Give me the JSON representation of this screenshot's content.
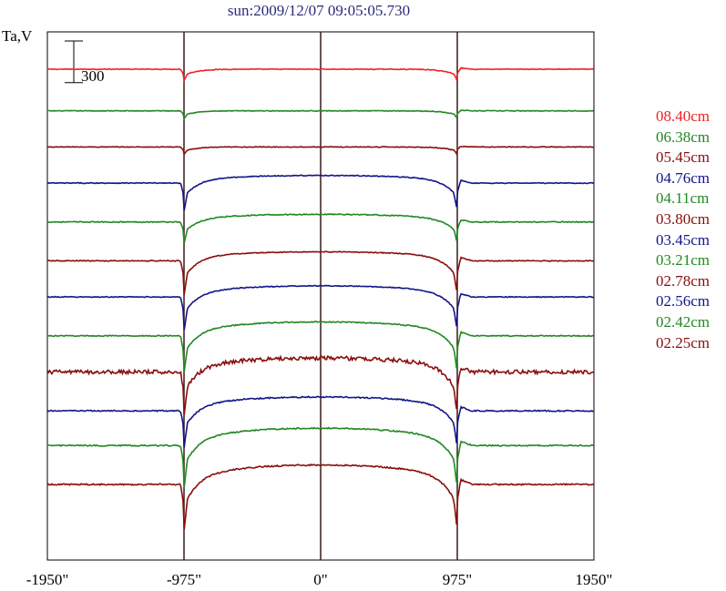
{
  "title": "sun:2009/12/07 09:05:05.730",
  "ylabel": "Ta,V",
  "chart_data": {
    "type": "line",
    "title": "sun:2009/12/07 09:05:05.730",
    "ylabel": "Ta,V",
    "xlim": [
      -1950,
      1950
    ],
    "x_ticks": [
      {
        "value": -1950,
        "label": "-1950\""
      },
      {
        "value": -975,
        "label": "-975\""
      },
      {
        "value": 0,
        "label": "0\""
      },
      {
        "value": 975,
        "label": "975\""
      },
      {
        "value": 1950,
        "label": "1950\""
      }
    ],
    "vertical_lines": [
      -975,
      0,
      975
    ],
    "scale_bar": {
      "label": "300",
      "value": 300
    },
    "legend_position": "right",
    "grid": false,
    "series": [
      {
        "name": "08.40cm",
        "color": "#ee2222",
        "offset": 0,
        "disk": 0,
        "dip": 0.18,
        "noise": 0.12
      },
      {
        "name": "06.38cm",
        "color": "#228822",
        "offset": -300,
        "disk": 0,
        "dip": 0.12,
        "noise": 0.12
      },
      {
        "name": "05.45cm",
        "color": "#880e0e",
        "offset": -560,
        "disk": 0,
        "dip": 0.12,
        "noise": 0.12
      },
      {
        "name": "04.76cm",
        "color": "#141488",
        "offset": -820,
        "disk": 55,
        "dip": 0.45,
        "noise": 0.15
      },
      {
        "name": "04.11cm",
        "color": "#228822",
        "offset": -1100,
        "disk": 55,
        "dip": 0.35,
        "noise": 0.18
      },
      {
        "name": "03.80cm",
        "color": "#880e0e",
        "offset": -1380,
        "disk": 65,
        "dip": 0.55,
        "noise": 0.15
      },
      {
        "name": "03.45cm",
        "color": "#141488",
        "offset": -1640,
        "disk": 80,
        "dip": 0.55,
        "noise": 0.15
      },
      {
        "name": "03.21cm",
        "color": "#228822",
        "offset": -1920,
        "disk": 100,
        "dip": 0.6,
        "noise": 0.18
      },
      {
        "name": "02.78cm",
        "color": "#880e0e",
        "offset": -2180,
        "disk": 100,
        "dip": 0.7,
        "noise": 0.7
      },
      {
        "name": "02.56cm",
        "color": "#141488",
        "offset": -2460,
        "disk": 100,
        "dip": 0.6,
        "noise": 0.22
      },
      {
        "name": "02.42cm",
        "color": "#228822",
        "offset": -2710,
        "disk": 125,
        "dip": 0.7,
        "noise": 0.22
      },
      {
        "name": "02.25cm",
        "color": "#880e0e",
        "offset": -2990,
        "disk": 140,
        "dip": 0.75,
        "noise": 0.25
      }
    ]
  }
}
